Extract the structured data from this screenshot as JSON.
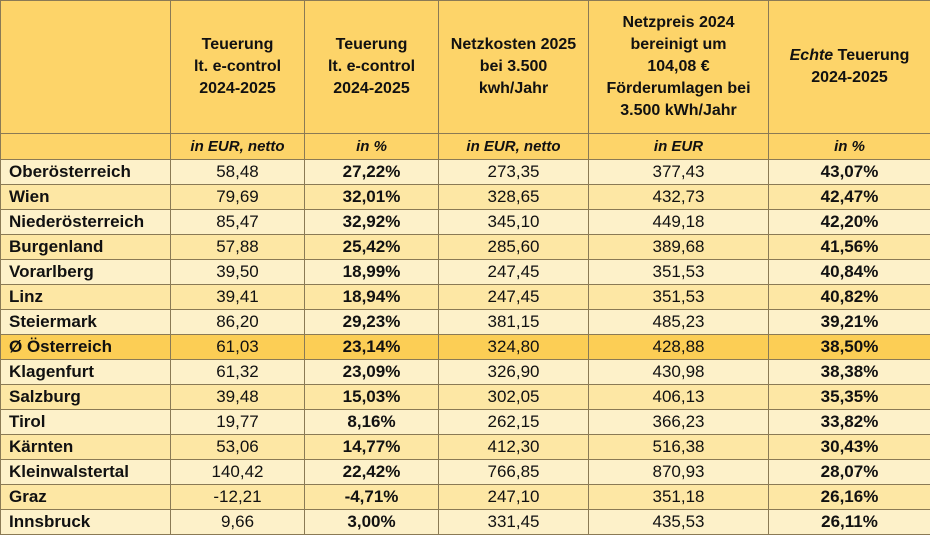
{
  "headers": [
    {
      "lines": [
        ""
      ]
    },
    {
      "lines": [
        "Teuerung",
        "lt. e-control",
        "2024-2025"
      ]
    },
    {
      "lines": [
        "Teuerung",
        "lt. e-control",
        "2024-2025"
      ]
    },
    {
      "lines": [
        "Netzkosten 2025",
        "bei 3.500",
        "kwh/Jahr"
      ]
    },
    {
      "lines": [
        "Netzpreis 2024",
        "bereinigt um",
        "104,08 €",
        "Förderumlagen bei",
        "3.500 kWh/Jahr"
      ]
    },
    {
      "italic_prefix": "Echte",
      "lines": [
        " Teuerung",
        "2024-2025"
      ]
    }
  ],
  "units": [
    "",
    "in EUR, netto",
    "in %",
    "in EUR, netto",
    "in EUR",
    "in %"
  ],
  "rows": [
    [
      "Oberösterreich",
      "58,48",
      "27,22%",
      "273,35",
      "377,43",
      "43,07%"
    ],
    [
      "Wien",
      "79,69",
      "32,01%",
      "328,65",
      "432,73",
      "42,47%"
    ],
    [
      "Niederösterreich",
      "85,47",
      "32,92%",
      "345,10",
      "449,18",
      "42,20%"
    ],
    [
      "Burgenland",
      "57,88",
      "25,42%",
      "285,60",
      "389,68",
      "41,56%"
    ],
    [
      "Vorarlberg",
      "39,50",
      "18,99%",
      "247,45",
      "351,53",
      "40,84%"
    ],
    [
      "Linz",
      "39,41",
      "18,94%",
      "247,45",
      "351,53",
      "40,82%"
    ],
    [
      "Steiermark",
      "86,20",
      "29,23%",
      "381,15",
      "485,23",
      "39,21%"
    ],
    [
      "Ø Österreich",
      "61,03",
      "23,14%",
      "324,80",
      "428,88",
      "38,50%"
    ],
    [
      "Klagenfurt",
      "61,32",
      "23,09%",
      "326,90",
      "430,98",
      "38,38%"
    ],
    [
      "Salzburg",
      "39,48",
      "15,03%",
      "302,05",
      "406,13",
      "35,35%"
    ],
    [
      "Tirol",
      "19,77",
      "8,16%",
      "262,15",
      "366,23",
      "33,82%"
    ],
    [
      "Kärnten",
      "53,06",
      "14,77%",
      "412,30",
      "516,38",
      "30,43%"
    ],
    [
      "Kleinwalstertal",
      "140,42",
      "22,42%",
      "766,85",
      "870,93",
      "28,07%"
    ],
    [
      "Graz",
      "-12,21",
      "-4,71%",
      "247,10",
      "351,18",
      "26,16%"
    ],
    [
      "Innsbruck",
      "9,66",
      "3,00%",
      "331,45",
      "435,53",
      "26,11%"
    ]
  ],
  "highlight_row": "Ø Österreich",
  "colors": {
    "header": "#fdd469",
    "row_light": "#fdf1c9",
    "row_dark": "#fde7a4",
    "highlight": "#fcce55",
    "border": "#8a7a55"
  }
}
